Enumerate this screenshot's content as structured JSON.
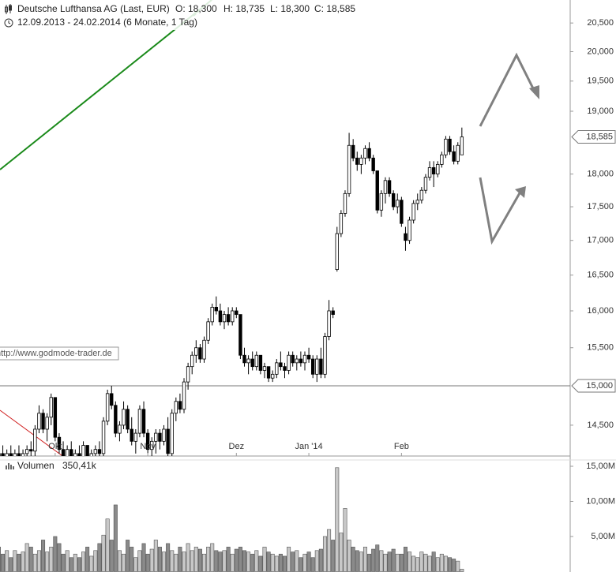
{
  "chart_data": {
    "type": "candlestick",
    "title": "Deutsche Lufthansa AG (Last, EUR)",
    "ohlc_labels": [
      "O: 18,300",
      "H: 18,735",
      "L: 18,300",
      "C: 18,585"
    ],
    "subtitle": "12.09.2013 - 24.02.2014 (6 Monate, 1 Tag)",
    "watermark": "http://www.godmode-trader.de",
    "log_scale": true,
    "xlim": [
      0.3,
      141.9
    ],
    "xticks": [
      {
        "value": 14,
        "label": "Okt"
      },
      {
        "value": 37,
        "label": "Nov"
      },
      {
        "value": 59,
        "label": "Dez"
      },
      {
        "value": 77,
        "label": "Jan '14"
      },
      {
        "value": 100,
        "label": "Feb"
      }
    ],
    "ylim": [
      14120,
      20910
    ],
    "yticks": [
      {
        "value": 14500,
        "label": "14,500"
      },
      {
        "value": 15500,
        "label": "15,500"
      },
      {
        "value": 16000,
        "label": "16,000"
      },
      {
        "value": 16500,
        "label": "16,500"
      },
      {
        "value": 17000,
        "label": "17,000"
      },
      {
        "value": 17500,
        "label": "17,500"
      },
      {
        "value": 18000,
        "label": "18,000"
      },
      {
        "value": 19000,
        "label": "19,000"
      },
      {
        "value": 19500,
        "label": "19,500"
      },
      {
        "value": 20000,
        "label": "20,000"
      },
      {
        "value": 20500,
        "label": "20,500"
      }
    ],
    "hlines": [
      {
        "value": 15000,
        "label": "15,000"
      }
    ],
    "last_price": {
      "value": 18585,
      "label": "18,585"
    },
    "up_color": "#ffffff",
    "down_color": "#000000",
    "open": [
      14150,
      14150,
      14100,
      14150,
      14100,
      14150,
      14100,
      14150,
      14200,
      14180,
      14450,
      14650,
      14450,
      14600,
      14850,
      14350,
      14200,
      14100,
      14200,
      14100,
      14150,
      14100,
      14250,
      14100,
      14150,
      14200,
      14150,
      14550,
      14900,
      14750,
      14400,
      14500,
      14700,
      14450,
      14300,
      14400,
      14700,
      14400,
      14200,
      14300,
      14400,
      14300,
      14450,
      14150,
      14650,
      14800,
      14700,
      15050,
      15250,
      15400,
      15500,
      15350,
      15600,
      15850,
      16050,
      16000,
      15850,
      15950,
      15850,
      16000,
      15950,
      15400,
      15300,
      15350,
      15250,
      15400,
      15200,
      15250,
      15100,
      15150,
      15300,
      15250,
      15200,
      15400,
      15300,
      15350,
      15300,
      15400,
      15350,
      15150,
      15350,
      15150,
      15650,
      16000,
      16580,
      17100,
      17400,
      17700,
      18450,
      18250,
      18150,
      18250,
      18400,
      18250,
      18050,
      17450,
      17700,
      17900,
      17700,
      17500,
      17600,
      17100,
      17000,
      17300,
      17550,
      17600,
      17750,
      17950,
      18100,
      18000,
      18150,
      18300,
      18550,
      18350,
      18200,
      18300
    ],
    "high": [
      14200,
      14250,
      14200,
      14250,
      14200,
      14250,
      14200,
      14250,
      14300,
      14500,
      14750,
      14700,
      14650,
      14900,
      14850,
      14400,
      14300,
      14250,
      14300,
      14200,
      14250,
      14300,
      14250,
      14200,
      14250,
      14300,
      14600,
      14950,
      15000,
      14800,
      14550,
      14800,
      14750,
      14600,
      14450,
      14750,
      14800,
      14450,
      14350,
      14450,
      14450,
      14500,
      14600,
      14700,
      14850,
      14900,
      15100,
      15300,
      15450,
      15600,
      15550,
      15650,
      15900,
      16100,
      16200,
      16100,
      16000,
      16050,
      16050,
      16050,
      15950,
      15500,
      15400,
      15450,
      15450,
      15400,
      15300,
      15250,
      15200,
      15350,
      15450,
      15300,
      15450,
      15450,
      15400,
      15450,
      15450,
      15500,
      15400,
      15400,
      15500,
      15700,
      16150,
      16050,
      17200,
      17450,
      17750,
      18650,
      18550,
      18350,
      18300,
      18450,
      18500,
      18300,
      18050,
      17750,
      17950,
      17950,
      17750,
      17700,
      17650,
      17200,
      17350,
      17600,
      17700,
      17800,
      18000,
      18200,
      18200,
      18200,
      18350,
      18600,
      18600,
      18450,
      18500,
      18735
    ],
    "low": [
      14050,
      14050,
      14000,
      14050,
      14000,
      14050,
      14000,
      14050,
      14100,
      14100,
      14400,
      14400,
      14300,
      14500,
      14300,
      14150,
      14050,
      14000,
      14050,
      14000,
      14050,
      14000,
      14050,
      14000,
      14050,
      14100,
      14100,
      14500,
      14700,
      14350,
      14300,
      14450,
      14400,
      14250,
      14150,
      14350,
      14350,
      14150,
      14100,
      14150,
      14200,
      14250,
      14100,
      14100,
      14550,
      14650,
      14650,
      14950,
      15150,
      15300,
      15300,
      15300,
      15550,
      15800,
      15950,
      15800,
      15750,
      15800,
      15800,
      15900,
      15350,
      15250,
      15150,
      15200,
      15200,
      15150,
      15100,
      15050,
      15050,
      15100,
      15200,
      15100,
      15150,
      15250,
      15200,
      15250,
      15200,
      15300,
      15100,
      15050,
      15100,
      15100,
      15600,
      15900,
      16550,
      17050,
      17350,
      17650,
      18200,
      18050,
      18000,
      18150,
      18200,
      18000,
      17400,
      17350,
      17550,
      17650,
      17450,
      17400,
      17200,
      16850,
      16950,
      17250,
      17450,
      17550,
      17700,
      17900,
      17800,
      17950,
      18100,
      18250,
      18300,
      18150,
      18150,
      18300
    ],
    "close": [
      14100,
      14100,
      14150,
      14100,
      14150,
      14100,
      14150,
      14200,
      14180,
      14450,
      14650,
      14450,
      14600,
      14850,
      14350,
      14200,
      14100,
      14200,
      14100,
      14150,
      14100,
      14250,
      14100,
      14150,
      14200,
      14150,
      14550,
      14900,
      14750,
      14400,
      14500,
      14700,
      14450,
      14300,
      14400,
      14700,
      14400,
      14200,
      14300,
      14400,
      14300,
      14450,
      14150,
      14650,
      14800,
      14700,
      15050,
      15250,
      15400,
      15500,
      15350,
      15600,
      15850,
      16050,
      16000,
      15850,
      15950,
      15850,
      16000,
      15950,
      15400,
      15300,
      15350,
      15250,
      15400,
      15200,
      15250,
      15100,
      15150,
      15300,
      15250,
      15200,
      15400,
      15300,
      15350,
      15300,
      15400,
      15350,
      15150,
      15350,
      15150,
      15650,
      16000,
      15950,
      17100,
      17400,
      17700,
      18450,
      18250,
      18150,
      18250,
      18400,
      18250,
      18050,
      17450,
      17700,
      17900,
      17700,
      17500,
      17600,
      17250,
      17000,
      17300,
      17550,
      17600,
      17750,
      17950,
      18100,
      18000,
      18150,
      18300,
      18550,
      18350,
      18200,
      18450,
      18585
    ],
    "volume": {
      "name": "Volumen",
      "last_label": "350,41k",
      "ylim": [
        0,
        15.9
      ],
      "yticks": [
        {
          "value": 5,
          "label": "5,00M"
        },
        {
          "value": 10,
          "label": "10,00M"
        },
        {
          "value": 15,
          "label": "15,00M"
        }
      ],
      "up_color": "#c8c8c8",
      "down_color": "#8a8a8a",
      "values": [
        3.5,
        2.5,
        3,
        2,
        3,
        2.5,
        2.8,
        4,
        3.5,
        2.5,
        3,
        4.5,
        2.8,
        3.5,
        5,
        4,
        2.5,
        3,
        2,
        2.5,
        2,
        2.8,
        3.5,
        2.2,
        3,
        4,
        5.2,
        7.5,
        4.5,
        9.5,
        3,
        2.5,
        4.5,
        3.5,
        2,
        3,
        4,
        2.5,
        3.2,
        4.5,
        3.5,
        2.8,
        4,
        3,
        2.5,
        3.5,
        2.8,
        4,
        3,
        3.5,
        3.2,
        2.5,
        3.5,
        4,
        3,
        2.8,
        3,
        3.5,
        2.5,
        3.2,
        3.5,
        3,
        2.8,
        2.5,
        3,
        2.2,
        3.5,
        2.8,
        2.5,
        2.2,
        2.5,
        2.2,
        3.5,
        2.8,
        3,
        2,
        2.5,
        2.8,
        2,
        3,
        3.2,
        5,
        6,
        4.5,
        14.8,
        5.5,
        9,
        4.5,
        3.5,
        3,
        2.8,
        3.5,
        2.5,
        3.2,
        3.8,
        3,
        2.5,
        2.8,
        3.2,
        2.5,
        2.5,
        3.5,
        2.8,
        2.2,
        2,
        2.8,
        2.5,
        2.2,
        2.8,
        2,
        2.5,
        2.2,
        2,
        1.8,
        1.5,
        0.35041
      ]
    }
  }
}
